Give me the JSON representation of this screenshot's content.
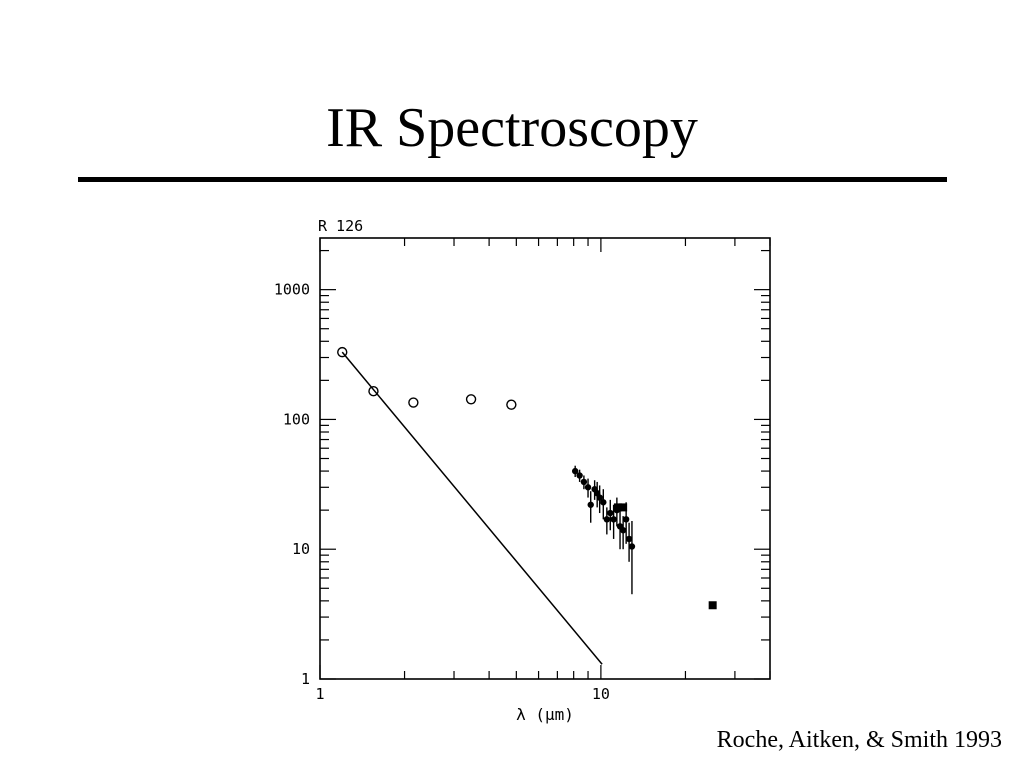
{
  "slide": {
    "title": "IR Spectroscopy",
    "citation": "Roche, Aitken, & Smith 1993"
  },
  "chart_data": {
    "type": "scatter",
    "title": "R 126",
    "xlabel": "λ (μm)",
    "ylabel": "",
    "x_scale": "log",
    "y_scale": "log",
    "xlim": [
      1,
      40
    ],
    "ylim": [
      1,
      2500
    ],
    "x_ticks": [
      {
        "value": 1,
        "label": "1"
      },
      {
        "value": 10,
        "label": "10"
      }
    ],
    "y_ticks": [
      {
        "value": 1,
        "label": "1"
      },
      {
        "value": 10,
        "label": "10"
      },
      {
        "value": 100,
        "label": "100"
      },
      {
        "value": 1000,
        "label": "1000"
      }
    ],
    "grid": false,
    "series": [
      {
        "marker": "open-circle",
        "points": [
          [
            1.2,
            330
          ],
          [
            1.55,
            165
          ],
          [
            2.15,
            135
          ],
          [
            3.45,
            143
          ],
          [
            4.8,
            130
          ]
        ]
      },
      {
        "marker": "filled-circle",
        "points": [
          [
            8.1,
            40,
            4
          ],
          [
            8.4,
            37,
            4
          ],
          [
            8.7,
            33,
            4
          ],
          [
            9.0,
            30,
            5
          ],
          [
            9.2,
            22,
            6
          ],
          [
            9.5,
            29,
            5
          ],
          [
            9.7,
            27,
            6
          ],
          [
            9.9,
            25,
            6
          ],
          [
            10.2,
            23,
            6
          ],
          [
            10.5,
            17,
            4
          ],
          [
            10.8,
            19,
            5
          ],
          [
            11.1,
            17,
            5
          ],
          [
            11.4,
            20,
            5
          ],
          [
            11.7,
            15,
            5
          ],
          [
            12.0,
            14,
            4
          ],
          [
            12.3,
            17,
            6
          ],
          [
            12.6,
            12,
            4
          ],
          [
            12.9,
            10.5,
            6
          ]
        ]
      },
      {
        "marker": "filled-square",
        "points": [
          [
            11.5,
            21
          ],
          [
            12.0,
            21
          ],
          [
            25.0,
            3.7
          ]
        ]
      },
      {
        "marker": "line",
        "points": [
          [
            1.2,
            330
          ],
          [
            10.1,
            1.3
          ]
        ]
      }
    ]
  }
}
